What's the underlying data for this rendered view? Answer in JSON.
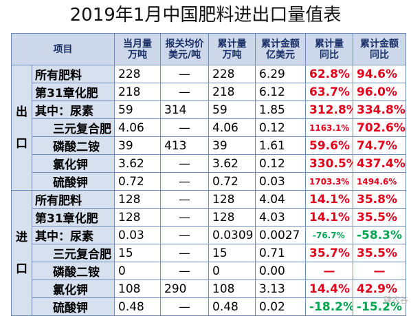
{
  "title": "2019年1月中国肥料进出口量值表",
  "headers": {
    "item": "项目",
    "month_qty": [
      "当月量",
      "万吨"
    ],
    "avg_price": [
      "报关均价",
      "美元/吨"
    ],
    "cum_qty": [
      "累计量",
      "万吨"
    ],
    "cum_value": [
      "累计金额",
      "亿美元"
    ],
    "cum_qty_yoy": [
      "累计量",
      "同比"
    ],
    "cum_value_yoy": [
      "累计金额",
      "同比"
    ]
  },
  "export": {
    "label": "出口",
    "label_chars": [
      "出",
      "口"
    ],
    "rows": [
      {
        "name": "所有肥料",
        "month_qty": "228",
        "avg_price": "—",
        "cum_qty": "228",
        "cum_value": "6.29",
        "qty_yoy": "62.8%",
        "value_yoy": "94.6%"
      },
      {
        "name": "第31章化肥",
        "month_qty": "218",
        "avg_price": "—",
        "cum_qty": "218",
        "cum_value": "6.12",
        "qty_yoy": "63.7%",
        "value_yoy": "96.0%"
      },
      {
        "name": "其中：尿素",
        "month_qty": "59",
        "avg_price": "314",
        "cum_qty": "59",
        "cum_value": "1.85",
        "qty_yoy": "312.8%",
        "value_yoy": "334.8%"
      },
      {
        "name": "三元复合肥",
        "month_qty": "4.06",
        "avg_price": "—",
        "cum_qty": "4.06",
        "cum_value": "0.12",
        "qty_yoy": "1163.1%",
        "value_yoy": "702.6%"
      },
      {
        "name": "磷酸二铵",
        "month_qty": "39",
        "avg_price": "413",
        "cum_qty": "39",
        "cum_value": "1.61",
        "qty_yoy": "59.6%",
        "value_yoy": "74.7%"
      },
      {
        "name": "氯化钾",
        "month_qty": "3.62",
        "avg_price": "—",
        "cum_qty": "3.62",
        "cum_value": "0.12",
        "qty_yoy": "330.5%",
        "value_yoy": "437.4%"
      },
      {
        "name": "硫酸钾",
        "month_qty": "0.72",
        "avg_price": "—",
        "cum_qty": "0.72",
        "cum_value": "0.03",
        "qty_yoy": "1703.3%",
        "value_yoy": "1494.6%"
      }
    ]
  },
  "import": {
    "label": "进口",
    "label_chars": [
      "进",
      "口"
    ],
    "rows": [
      {
        "name": "所有肥料",
        "month_qty": "128",
        "avg_price": "—",
        "cum_qty": "128",
        "cum_value": "4.04",
        "qty_yoy": "14.1%",
        "value_yoy": "35.8%"
      },
      {
        "name": "第31章化肥",
        "month_qty": "128",
        "avg_price": "—",
        "cum_qty": "128",
        "cum_value": "4.03",
        "qty_yoy": "14.1%",
        "value_yoy": "35.5%"
      },
      {
        "name": "其中：尿素",
        "month_qty": "0.03",
        "avg_price": "—",
        "cum_qty": "0.0309",
        "cum_value": "0.0027",
        "qty_yoy": "-76.7%",
        "value_yoy": "-58.3%"
      },
      {
        "name": "三元复合肥",
        "month_qty": "15",
        "avg_price": "—",
        "cum_qty": "15",
        "cum_value": "0.71",
        "qty_yoy": "35.7%",
        "value_yoy": "35.5%"
      },
      {
        "name": "磷酸二铵",
        "month_qty": "0",
        "avg_price": "—",
        "cum_qty": "0",
        "cum_value": "0.00",
        "qty_yoy": "—",
        "value_yoy": "—"
      },
      {
        "name": "氯化钾",
        "month_qty": "108",
        "avg_price": "290",
        "cum_qty": "108",
        "cum_value": "3.13",
        "qty_yoy": "14.4%",
        "value_yoy": "42.9%"
      },
      {
        "name": "硫酸钾",
        "month_qty": "0.48",
        "avg_price": "—",
        "cum_qty": "0.48",
        "cum_value": "0.02",
        "qty_yoy": "-18.2%",
        "value_yoy": "-15.2%"
      }
    ]
  },
  "watermark": "肆农谷"
}
